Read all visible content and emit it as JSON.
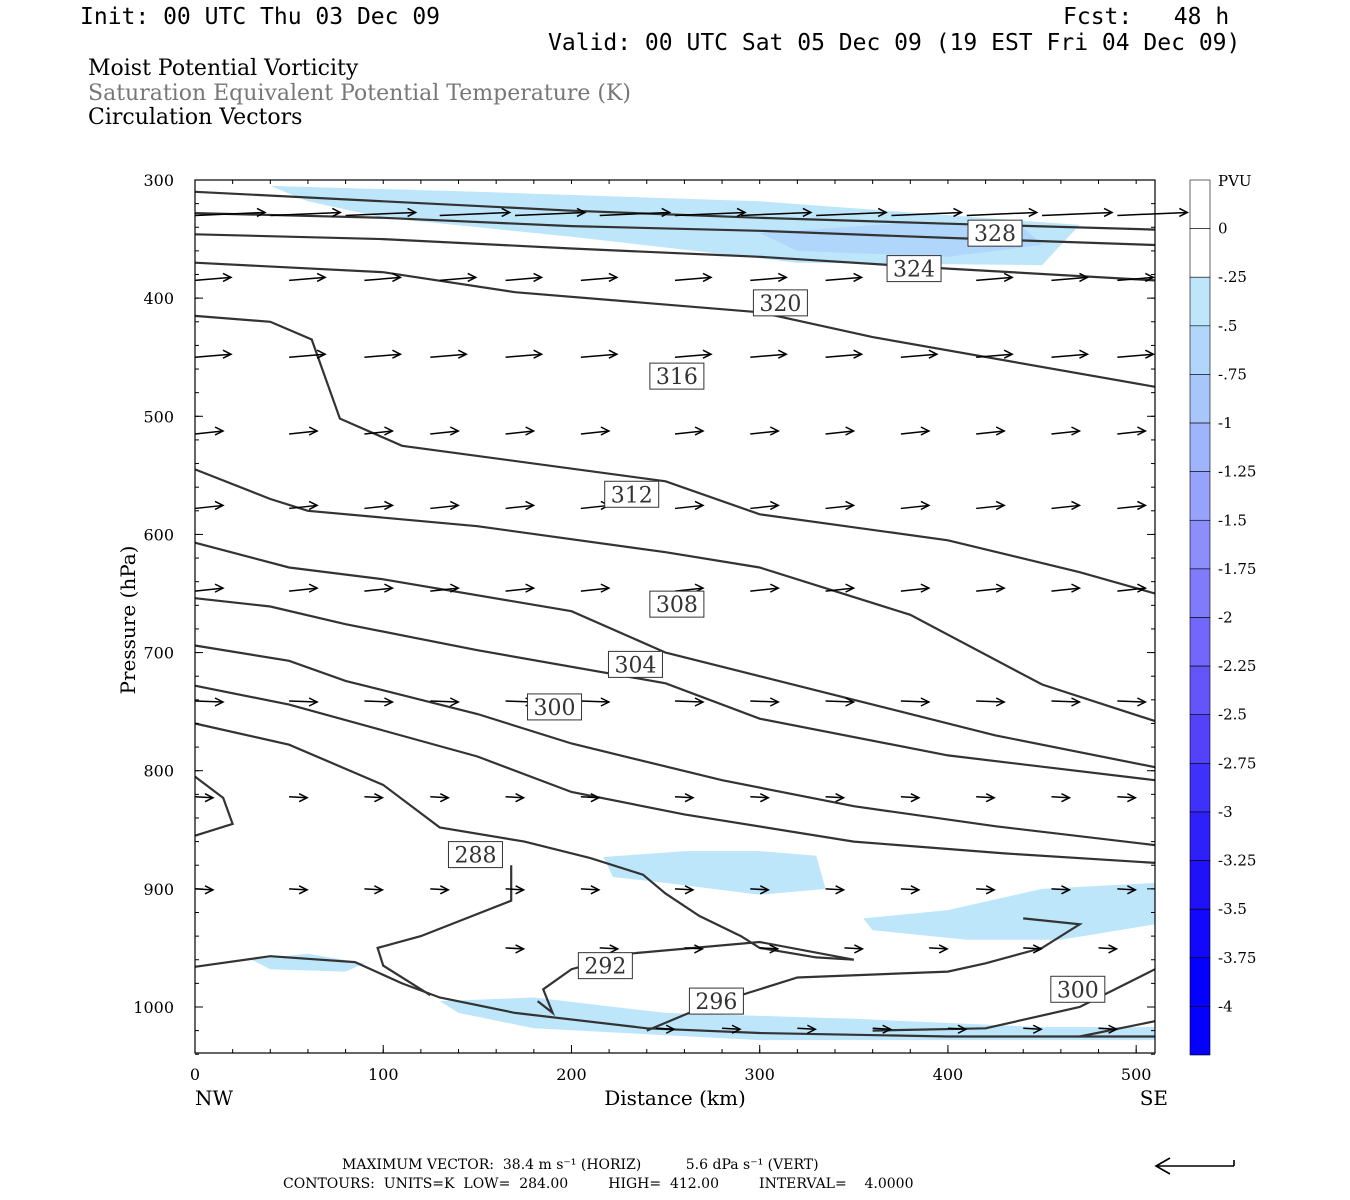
{
  "header": {
    "init": "Init: 00 UTC Thu 03 Dec 09",
    "fcst": "Fcst:   48 h",
    "valid": "Valid: 00 UTC Sat 05 Dec 09 (19 EST Fri 04 Dec 09)"
  },
  "titles": {
    "line1": "Moist Potential Vorticity",
    "line2": "Saturation Equivalent Potential Temperature (K)",
    "line3": "Circulation Vectors"
  },
  "colors": {
    "contour": "#333333",
    "title2": "#777777",
    "axis": "#000000"
  },
  "chart_data": {
    "type": "contour",
    "xlabel": "Distance (km)",
    "ylabel": "Pressure (hPa)",
    "xlim": [
      0,
      510
    ],
    "ylim": [
      300,
      1040
    ],
    "y_inverted": true,
    "xticks": [
      0,
      100,
      200,
      300,
      400,
      500
    ],
    "yticks": [
      300,
      400,
      500,
      600,
      700,
      800,
      900,
      1000
    ],
    "xend_labels": {
      "left": "NW",
      "right": "SE"
    },
    "colorbar": {
      "unit": "PVU",
      "levels": [
        "0",
        "-.25",
        "-.5",
        "-.75",
        "-1",
        "-1.25",
        "-1.5",
        "-1.75",
        "-2",
        "-2.25",
        "-2.5",
        "-2.75",
        "-3",
        "-3.25",
        "-3.5",
        "-3.75",
        "-4"
      ],
      "colors": [
        "#ffffff",
        "#ffffff",
        "#bde6fb",
        "#b1d6fb",
        "#a9c6fb",
        "#a0b4fb",
        "#97a2fb",
        "#8b8efb",
        "#7f7bfb",
        "#7168fb",
        "#6255fb",
        "#5243fb",
        "#4030fb",
        "#2e20fb",
        "#1f12fb",
        "#1208fb",
        "#0400fb"
      ]
    },
    "contour_labels": [
      {
        "value": "328",
        "x": 425,
        "y": 345
      },
      {
        "value": "324",
        "x": 382,
        "y": 375
      },
      {
        "value": "320",
        "x": 311,
        "y": 404
      },
      {
        "value": "316",
        "x": 256,
        "y": 466
      },
      {
        "value": "312",
        "x": 232,
        "y": 566
      },
      {
        "value": "308",
        "x": 256,
        "y": 659
      },
      {
        "value": "304",
        "x": 234,
        "y": 710
      },
      {
        "value": "300",
        "x": 191,
        "y": 746
      },
      {
        "value": "288",
        "x": 149,
        "y": 871
      },
      {
        "value": "292",
        "x": 218,
        "y": 965
      },
      {
        "value": "296",
        "x": 277,
        "y": 995
      },
      {
        "value": "300",
        "x": 469,
        "y": 985
      }
    ],
    "contours": [
      [
        [
          0,
          310
        ],
        [
          100,
          318
        ],
        [
          200,
          326
        ],
        [
          300,
          332
        ],
        [
          400,
          337
        ],
        [
          510,
          342
        ]
      ],
      [
        [
          0,
          328
        ],
        [
          100,
          332
        ],
        [
          200,
          339
        ],
        [
          300,
          343
        ],
        [
          400,
          349
        ],
        [
          510,
          355
        ]
      ],
      [
        [
          0,
          346
        ],
        [
          100,
          350
        ],
        [
          200,
          358
        ],
        [
          300,
          365
        ],
        [
          400,
          375
        ],
        [
          510,
          385
        ]
      ],
      [
        [
          0,
          370
        ],
        [
          100,
          378
        ],
        [
          170,
          395
        ],
        [
          300,
          412
        ],
        [
          360,
          433
        ],
        [
          510,
          475
        ]
      ],
      [
        [
          0,
          415
        ],
        [
          40,
          420
        ],
        [
          62,
          435
        ],
        [
          77,
          502
        ],
        [
          110,
          525
        ],
        [
          250,
          555
        ],
        [
          300,
          583
        ],
        [
          400,
          605
        ],
        [
          470,
          632
        ],
        [
          510,
          650
        ]
      ],
      [
        [
          0,
          545
        ],
        [
          40,
          570
        ],
        [
          60,
          580
        ],
        [
          150,
          593
        ],
        [
          250,
          615
        ],
        [
          300,
          628
        ],
        [
          380,
          668
        ],
        [
          450,
          727
        ],
        [
          510,
          758
        ]
      ],
      [
        [
          0,
          607
        ],
        [
          50,
          628
        ],
        [
          100,
          638
        ],
        [
          200,
          665
        ],
        [
          250,
          700
        ],
        [
          300,
          720
        ],
        [
          350,
          740
        ],
        [
          425,
          770
        ],
        [
          510,
          797
        ]
      ],
      [
        [
          0,
          654
        ],
        [
          40,
          661
        ],
        [
          80,
          676
        ],
        [
          150,
          698
        ],
        [
          250,
          726
        ],
        [
          300,
          756
        ],
        [
          400,
          787
        ],
        [
          510,
          808
        ]
      ],
      [
        [
          0,
          694
        ],
        [
          50,
          707
        ],
        [
          80,
          724
        ],
        [
          150,
          752
        ],
        [
          200,
          777
        ],
        [
          280,
          808
        ],
        [
          350,
          830
        ],
        [
          425,
          847
        ],
        [
          510,
          863
        ]
      ],
      [
        [
          0,
          728
        ],
        [
          50,
          744
        ],
        [
          100,
          766
        ],
        [
          150,
          788
        ],
        [
          200,
          818
        ],
        [
          260,
          837
        ],
        [
          350,
          860
        ],
        [
          430,
          870
        ],
        [
          510,
          878
        ]
      ],
      [
        [
          0,
          760
        ],
        [
          50,
          778
        ],
        [
          100,
          812
        ],
        [
          130,
          848
        ],
        [
          175,
          860
        ],
        [
          210,
          874
        ],
        [
          238,
          888
        ],
        [
          250,
          904
        ],
        [
          268,
          923
        ],
        [
          290,
          940
        ],
        [
          300,
          950
        ],
        [
          330,
          958
        ],
        [
          350,
          960
        ]
      ]
    ],
    "vectors": [
      {
        "y": 330,
        "xs": [
          0,
          40,
          80,
          130,
          170,
          215,
          255,
          290,
          330,
          370,
          410,
          450,
          490
        ]
      },
      {
        "y": 385,
        "xs": [
          0,
          50,
          90,
          130,
          165,
          205,
          255,
          295,
          335,
          375,
          415,
          455,
          490
        ]
      },
      {
        "y": 450,
        "xs": [
          0,
          50,
          90,
          125,
          165,
          205,
          255,
          295,
          335,
          375,
          415,
          455,
          490
        ]
      },
      {
        "y": 515,
        "xs": [
          0,
          50,
          90,
          125,
          165,
          205,
          255,
          295,
          335,
          375,
          415,
          455,
          490
        ]
      },
      {
        "y": 578,
        "xs": [
          0,
          50,
          90,
          125,
          165,
          205,
          255,
          295,
          335,
          375,
          415,
          455,
          490
        ]
      },
      {
        "y": 648,
        "xs": [
          0,
          50,
          90,
          125,
          165,
          205,
          255,
          295,
          335,
          375,
          415,
          455,
          490
        ]
      },
      {
        "y": 741,
        "xs": [
          0,
          50,
          90,
          125,
          165,
          205,
          255,
          295,
          335,
          375,
          415,
          455,
          490
        ]
      },
      {
        "y": 822,
        "xs": [
          0,
          50,
          90,
          125,
          165,
          205,
          255,
          295,
          335,
          375,
          415,
          455,
          490
        ]
      },
      {
        "y": 900,
        "xs": [
          0,
          50,
          90,
          125,
          165,
          205,
          255,
          295,
          335,
          375,
          415,
          455,
          490
        ]
      },
      {
        "y": 950,
        "xs": [
          165,
          215,
          260,
          300,
          345,
          390,
          440,
          480
        ]
      },
      {
        "y": 1018,
        "xs": [
          245,
          280,
          320,
          360,
          400,
          440,
          480
        ]
      }
    ]
  },
  "footer": {
    "line1": "MAXIMUM VECTOR:  38.4 m s⁻¹ (HORIZ)          5.6 dPa s⁻¹ (VERT)",
    "line2": "CONTOURS:  UNITS=K  LOW=  284.00         HIGH=  412.00         INTERVAL=    4.0000"
  }
}
